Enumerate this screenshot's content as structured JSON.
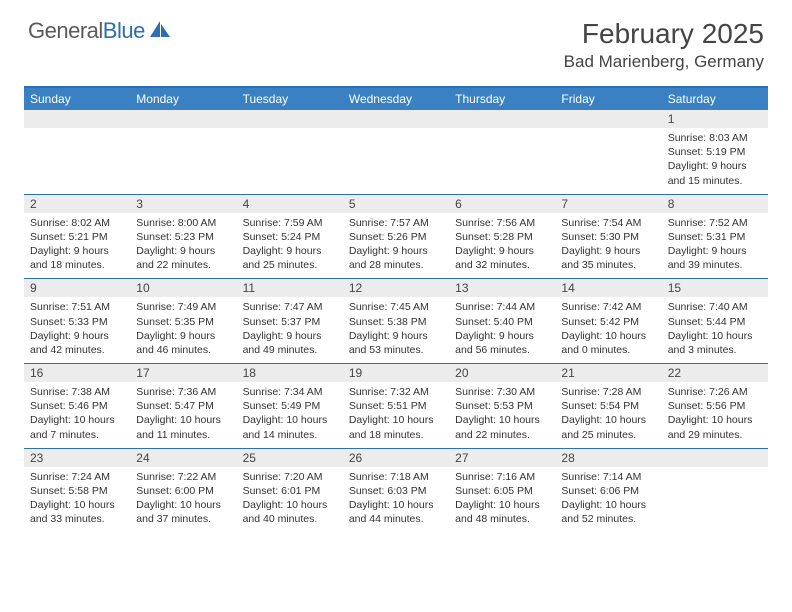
{
  "logo": {
    "text1": "General",
    "text2": "Blue"
  },
  "title": "February 2025",
  "location": "Bad Marienberg, Germany",
  "colors": {
    "header_bg": "#3a81c4",
    "header_border": "#2d6fb5",
    "daynum_bg": "#ececec",
    "text": "#333333",
    "logo_gray": "#5a5a5a",
    "logo_blue": "#2d6fb5"
  },
  "day_names": [
    "Sunday",
    "Monday",
    "Tuesday",
    "Wednesday",
    "Thursday",
    "Friday",
    "Saturday"
  ],
  "weeks": [
    [
      {
        "n": "",
        "sr": "",
        "ss": "",
        "dl": ""
      },
      {
        "n": "",
        "sr": "",
        "ss": "",
        "dl": ""
      },
      {
        "n": "",
        "sr": "",
        "ss": "",
        "dl": ""
      },
      {
        "n": "",
        "sr": "",
        "ss": "",
        "dl": ""
      },
      {
        "n": "",
        "sr": "",
        "ss": "",
        "dl": ""
      },
      {
        "n": "",
        "sr": "",
        "ss": "",
        "dl": ""
      },
      {
        "n": "1",
        "sr": "Sunrise: 8:03 AM",
        "ss": "Sunset: 5:19 PM",
        "dl": "Daylight: 9 hours and 15 minutes."
      }
    ],
    [
      {
        "n": "2",
        "sr": "Sunrise: 8:02 AM",
        "ss": "Sunset: 5:21 PM",
        "dl": "Daylight: 9 hours and 18 minutes."
      },
      {
        "n": "3",
        "sr": "Sunrise: 8:00 AM",
        "ss": "Sunset: 5:23 PM",
        "dl": "Daylight: 9 hours and 22 minutes."
      },
      {
        "n": "4",
        "sr": "Sunrise: 7:59 AM",
        "ss": "Sunset: 5:24 PM",
        "dl": "Daylight: 9 hours and 25 minutes."
      },
      {
        "n": "5",
        "sr": "Sunrise: 7:57 AM",
        "ss": "Sunset: 5:26 PM",
        "dl": "Daylight: 9 hours and 28 minutes."
      },
      {
        "n": "6",
        "sr": "Sunrise: 7:56 AM",
        "ss": "Sunset: 5:28 PM",
        "dl": "Daylight: 9 hours and 32 minutes."
      },
      {
        "n": "7",
        "sr": "Sunrise: 7:54 AM",
        "ss": "Sunset: 5:30 PM",
        "dl": "Daylight: 9 hours and 35 minutes."
      },
      {
        "n": "8",
        "sr": "Sunrise: 7:52 AM",
        "ss": "Sunset: 5:31 PM",
        "dl": "Daylight: 9 hours and 39 minutes."
      }
    ],
    [
      {
        "n": "9",
        "sr": "Sunrise: 7:51 AM",
        "ss": "Sunset: 5:33 PM",
        "dl": "Daylight: 9 hours and 42 minutes."
      },
      {
        "n": "10",
        "sr": "Sunrise: 7:49 AM",
        "ss": "Sunset: 5:35 PM",
        "dl": "Daylight: 9 hours and 46 minutes."
      },
      {
        "n": "11",
        "sr": "Sunrise: 7:47 AM",
        "ss": "Sunset: 5:37 PM",
        "dl": "Daylight: 9 hours and 49 minutes."
      },
      {
        "n": "12",
        "sr": "Sunrise: 7:45 AM",
        "ss": "Sunset: 5:38 PM",
        "dl": "Daylight: 9 hours and 53 minutes."
      },
      {
        "n": "13",
        "sr": "Sunrise: 7:44 AM",
        "ss": "Sunset: 5:40 PM",
        "dl": "Daylight: 9 hours and 56 minutes."
      },
      {
        "n": "14",
        "sr": "Sunrise: 7:42 AM",
        "ss": "Sunset: 5:42 PM",
        "dl": "Daylight: 10 hours and 0 minutes."
      },
      {
        "n": "15",
        "sr": "Sunrise: 7:40 AM",
        "ss": "Sunset: 5:44 PM",
        "dl": "Daylight: 10 hours and 3 minutes."
      }
    ],
    [
      {
        "n": "16",
        "sr": "Sunrise: 7:38 AM",
        "ss": "Sunset: 5:46 PM",
        "dl": "Daylight: 10 hours and 7 minutes."
      },
      {
        "n": "17",
        "sr": "Sunrise: 7:36 AM",
        "ss": "Sunset: 5:47 PM",
        "dl": "Daylight: 10 hours and 11 minutes."
      },
      {
        "n": "18",
        "sr": "Sunrise: 7:34 AM",
        "ss": "Sunset: 5:49 PM",
        "dl": "Daylight: 10 hours and 14 minutes."
      },
      {
        "n": "19",
        "sr": "Sunrise: 7:32 AM",
        "ss": "Sunset: 5:51 PM",
        "dl": "Daylight: 10 hours and 18 minutes."
      },
      {
        "n": "20",
        "sr": "Sunrise: 7:30 AM",
        "ss": "Sunset: 5:53 PM",
        "dl": "Daylight: 10 hours and 22 minutes."
      },
      {
        "n": "21",
        "sr": "Sunrise: 7:28 AM",
        "ss": "Sunset: 5:54 PM",
        "dl": "Daylight: 10 hours and 25 minutes."
      },
      {
        "n": "22",
        "sr": "Sunrise: 7:26 AM",
        "ss": "Sunset: 5:56 PM",
        "dl": "Daylight: 10 hours and 29 minutes."
      }
    ],
    [
      {
        "n": "23",
        "sr": "Sunrise: 7:24 AM",
        "ss": "Sunset: 5:58 PM",
        "dl": "Daylight: 10 hours and 33 minutes."
      },
      {
        "n": "24",
        "sr": "Sunrise: 7:22 AM",
        "ss": "Sunset: 6:00 PM",
        "dl": "Daylight: 10 hours and 37 minutes."
      },
      {
        "n": "25",
        "sr": "Sunrise: 7:20 AM",
        "ss": "Sunset: 6:01 PM",
        "dl": "Daylight: 10 hours and 40 minutes."
      },
      {
        "n": "26",
        "sr": "Sunrise: 7:18 AM",
        "ss": "Sunset: 6:03 PM",
        "dl": "Daylight: 10 hours and 44 minutes."
      },
      {
        "n": "27",
        "sr": "Sunrise: 7:16 AM",
        "ss": "Sunset: 6:05 PM",
        "dl": "Daylight: 10 hours and 48 minutes."
      },
      {
        "n": "28",
        "sr": "Sunrise: 7:14 AM",
        "ss": "Sunset: 6:06 PM",
        "dl": "Daylight: 10 hours and 52 minutes."
      },
      {
        "n": "",
        "sr": "",
        "ss": "",
        "dl": ""
      }
    ]
  ]
}
